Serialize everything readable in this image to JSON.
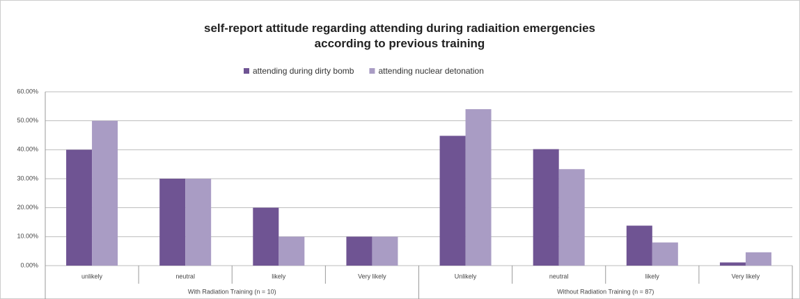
{
  "chart_data": {
    "type": "bar",
    "title": "self-report attitude regarding attending during radiaition emergencies according to previous training",
    "groups": [
      {
        "name": "With Radiation Training (n = 10)",
        "categories": [
          "unlikely",
          "neutral",
          "likely",
          "Very likely"
        ]
      },
      {
        "name": "Without Radiation Training (n = 87)",
        "categories": [
          "Unlikely",
          "neutral",
          "likely",
          "Very likely"
        ]
      }
    ],
    "series": [
      {
        "name": "attending during dirty bomb",
        "color": "#6f5493",
        "values": [
          40,
          30,
          20,
          10,
          44.8,
          40.2,
          13.8,
          1.1
        ]
      },
      {
        "name": "attending nuclear detonation",
        "color": "#a99cc4",
        "values": [
          50,
          30,
          10,
          10,
          54,
          33.3,
          8,
          4.6
        ]
      }
    ],
    "ylim": [
      0,
      60
    ],
    "yticks": [
      {
        "value": 0,
        "label": "0.00%"
      },
      {
        "value": 10,
        "label": "10.00%"
      },
      {
        "value": 20,
        "label": "20.00%"
      },
      {
        "value": 30,
        "label": "30.00%"
      },
      {
        "value": 40,
        "label": "40.00%"
      },
      {
        "value": 50,
        "label": "50.00%"
      },
      {
        "value": 60,
        "label": "60.00%"
      }
    ],
    "grid": true,
    "legend": "top"
  }
}
